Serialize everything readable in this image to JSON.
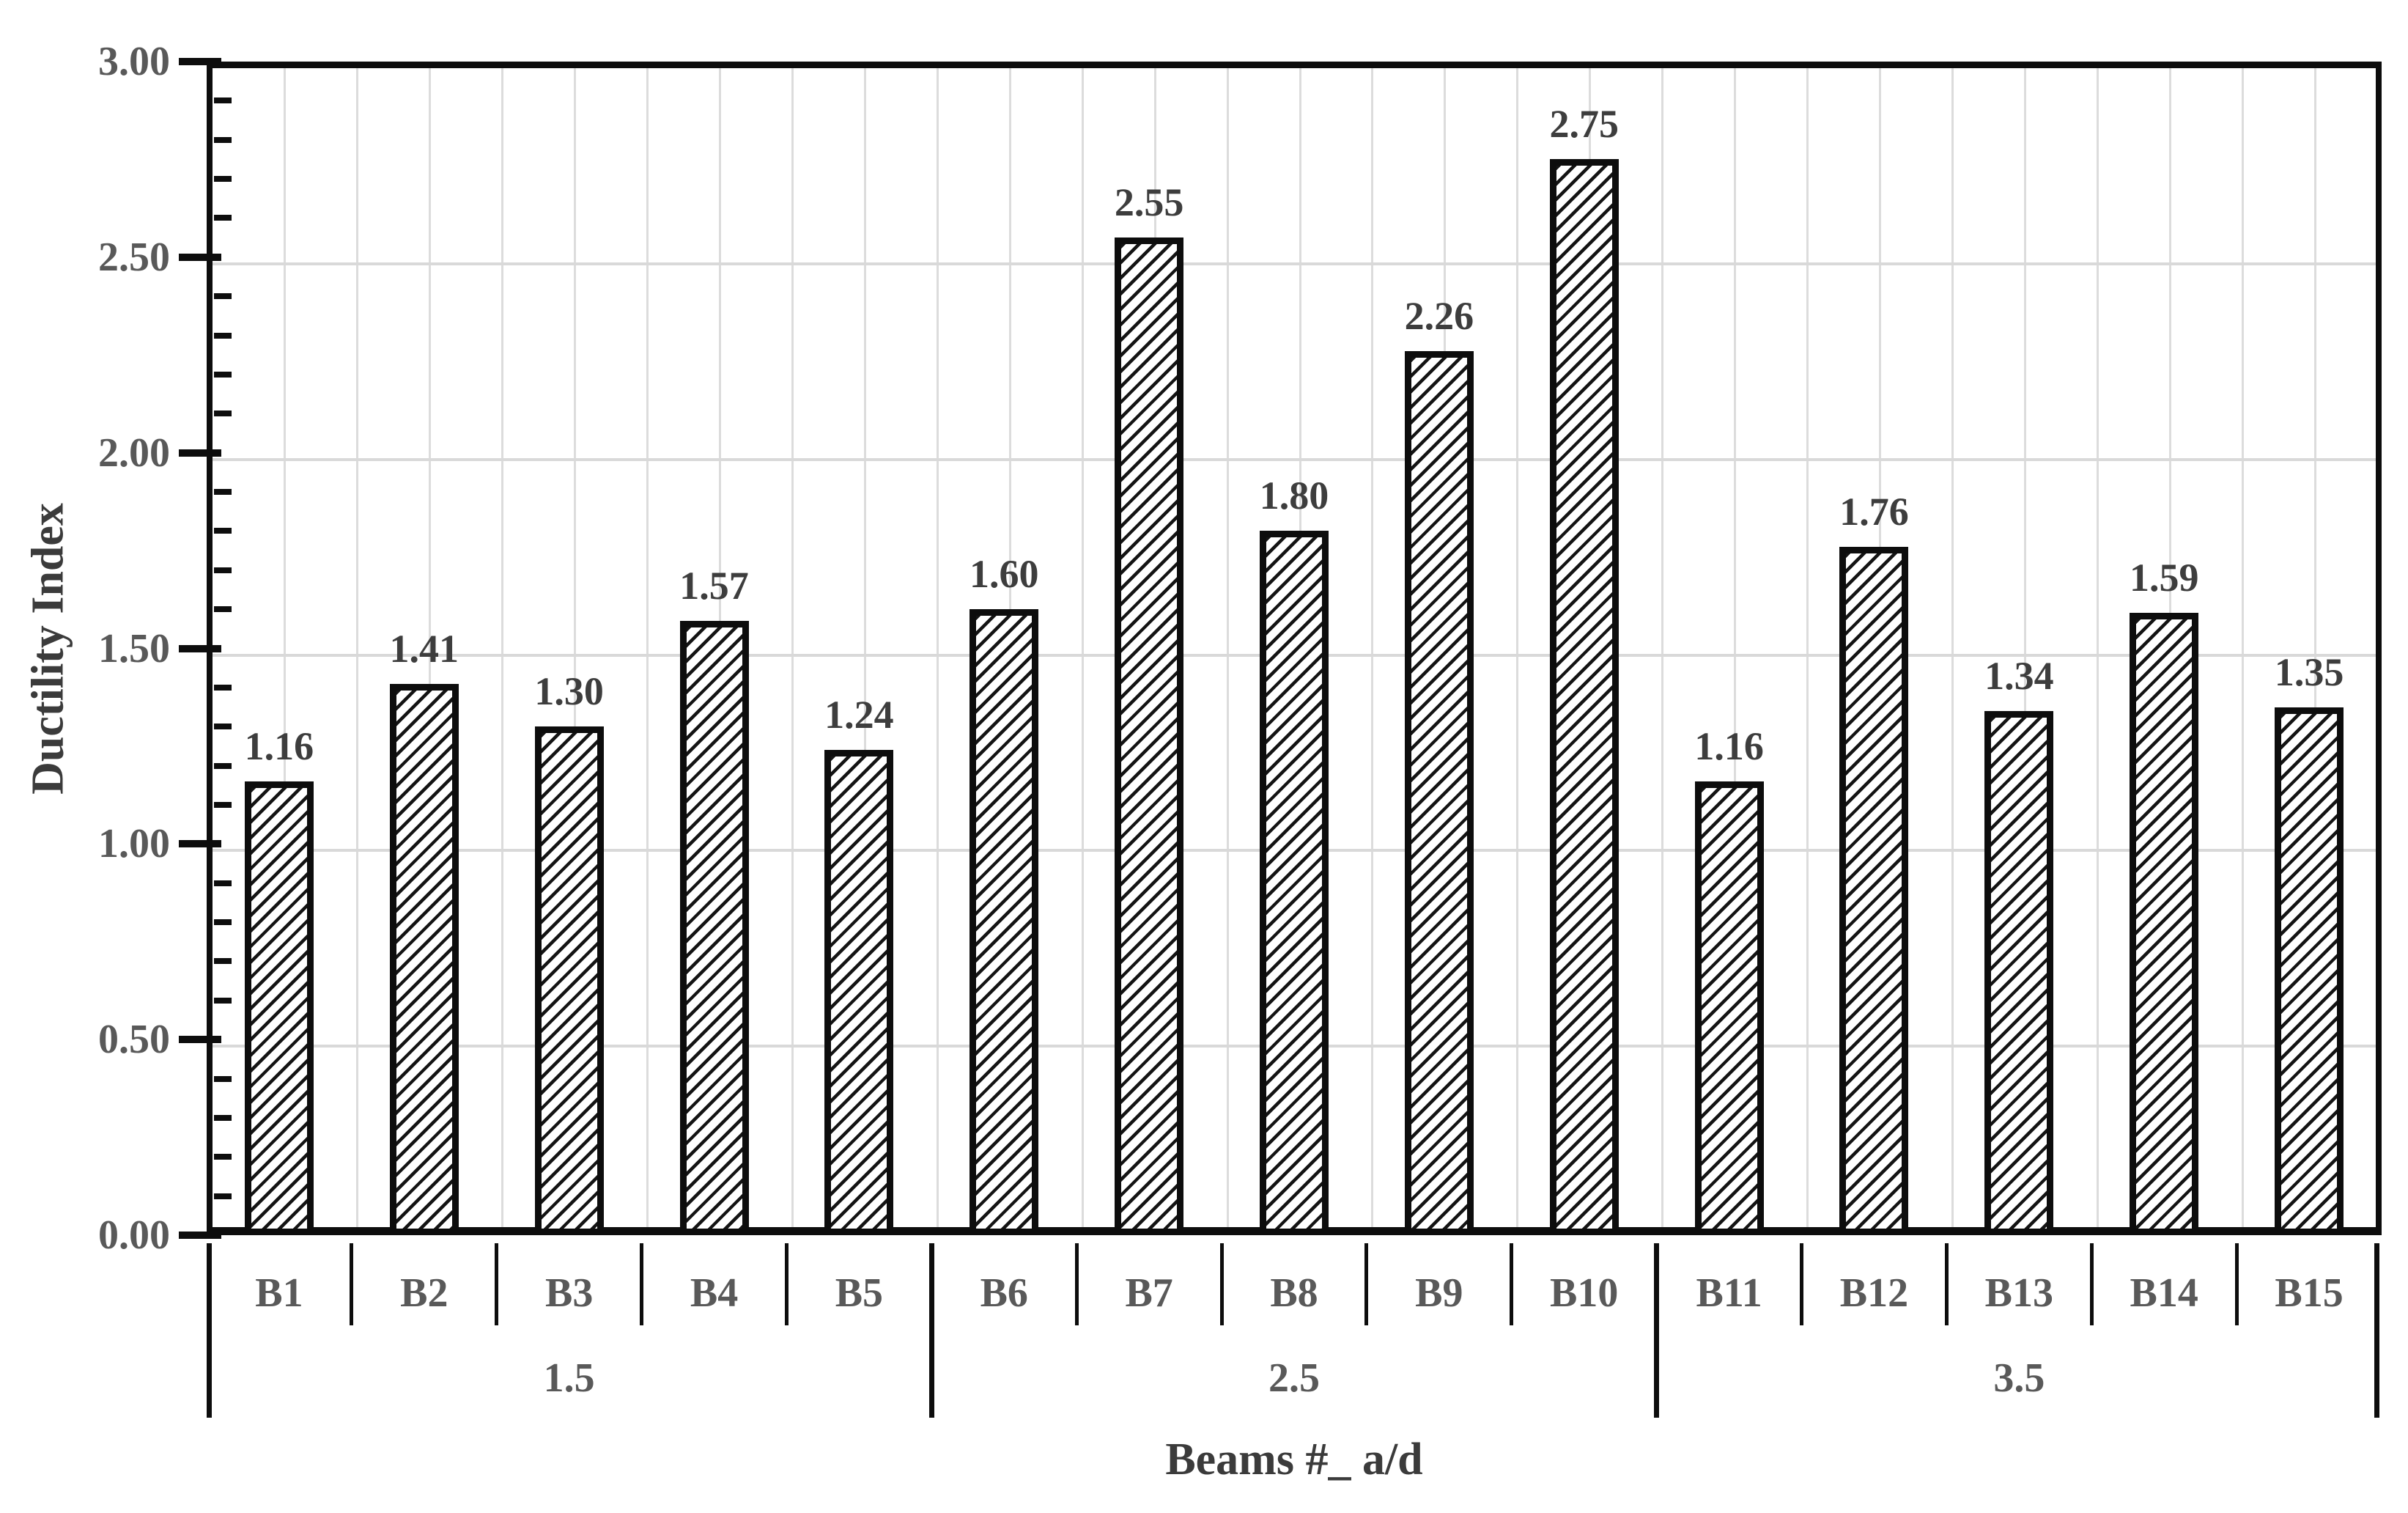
{
  "chart_data": {
    "type": "bar",
    "title": "",
    "ylabel": "Ductility Index",
    "xlabel": "Beams #_ a/d",
    "categories": [
      "B1",
      "B2",
      "B3",
      "B4",
      "B5",
      "B6",
      "B7",
      "B8",
      "B9",
      "B10",
      "B11",
      "B12",
      "B13",
      "B14",
      "B15"
    ],
    "values": [
      1.16,
      1.41,
      1.3,
      1.57,
      1.24,
      1.6,
      2.55,
      1.8,
      2.26,
      2.75,
      1.16,
      1.76,
      1.34,
      1.59,
      1.35
    ],
    "data_labels": [
      "1.16",
      "1.41",
      "1.30",
      "1.57",
      "1.24",
      "1.60",
      "2.55",
      "1.80",
      "2.26",
      "2.75",
      "1.16",
      "1.76",
      "1.34",
      "1.59",
      "1.35"
    ],
    "groups": [
      {
        "label": "1.5",
        "span": 5
      },
      {
        "label": "2.5",
        "span": 5
      },
      {
        "label": "3.5",
        "span": 5
      }
    ],
    "ylim": [
      0.0,
      3.0
    ],
    "y_major_unit": 0.5,
    "y_minor_unit": 0.1,
    "y_tick_labels": [
      "3.00",
      "2.50",
      "2.00",
      "1.50",
      "1.00",
      "0.50",
      "0.00"
    ],
    "legend": "none",
    "grid": {
      "horizontal_major": true,
      "vertical_half_category": true
    },
    "style": {
      "bar_fill": "#ffffff",
      "bar_hatch": "diagonal-forward-slash",
      "bar_border_color": "#0d0d0d",
      "axis_color": "#0d0d0d",
      "grid_color": "#d9d9d9",
      "tick_label_color": "#595959",
      "data_label_color": "#3d3d3d",
      "axis_title_color": "#3b3b3b"
    }
  }
}
